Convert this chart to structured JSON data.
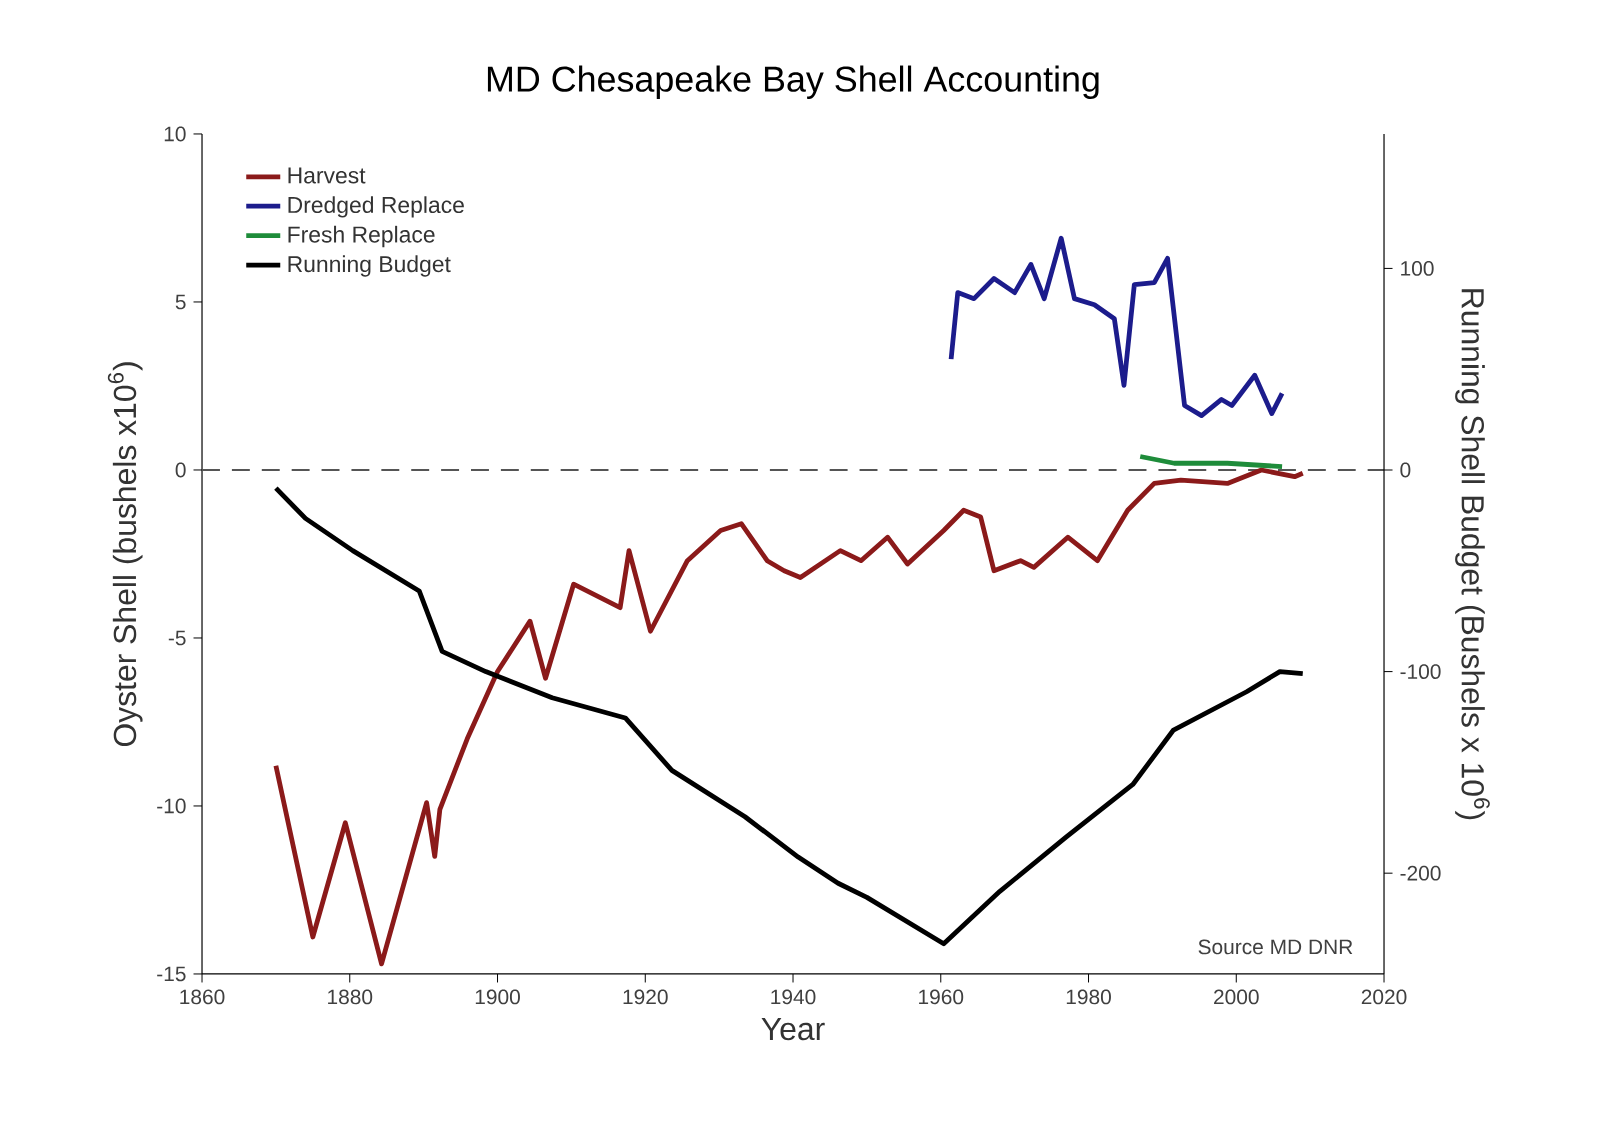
{
  "chart_data": {
    "type": "line",
    "title": "MD Chesapeake Bay Shell Accounting",
    "xlabel": "Year",
    "ylabel": "Oyster Shell (bushels x10$^{6}$)",
    "y2label": "Running Shell Budget (Bushels x 10$^{6}$)",
    "xlim": [
      1860,
      2020
    ],
    "xticks": [
      1860,
      1880,
      1900,
      1920,
      1940,
      1960,
      1980,
      2000,
      2020
    ],
    "ylim": [
      -15,
      10
    ],
    "yticks": [
      -15,
      -10,
      -5,
      0,
      5,
      10
    ],
    "y2lim": [
      -250,
      166.7
    ],
    "y2ticks": [
      -200,
      -100,
      0,
      100
    ],
    "grid": false,
    "legend": "top left",
    "marker": "none",
    "line_style": "solid",
    "ref_lines": [
      {
        "axis": "y",
        "value": 0,
        "color": "#555555",
        "line_style": "dashed"
      }
    ],
    "annotations": [
      "Source MD DNR"
    ],
    "series": [
      {
        "name": "Harvest",
        "color": "#8b1a1a",
        "x": [
          1870,
          1875,
          1879.4,
          1884.3,
          1890.4,
          1891.5,
          1892.2,
          1895.9,
          1900,
          1904.4,
          1906.5,
          1910.3,
          1916.6,
          1917.8,
          1920.7,
          1925.7,
          1930.2,
          1933,
          1936.5,
          1938.8,
          1941,
          1946.4,
          1949.2,
          1952.8,
          1955.5,
          1960.4,
          1963.1,
          1965.4,
          1967.2,
          1970.8,
          1972.6,
          1977.2,
          1981.2,
          1985.3,
          1988.9,
          1992.5,
          1998.8,
          2003.4,
          2007.9,
          2009
        ],
        "values": [
          -8.8,
          -13.9,
          -10.5,
          -14.7,
          -9.9,
          -11.5,
          -10.1,
          -8.0,
          -6.0,
          -4.5,
          -6.2,
          -3.4,
          -4.1,
          -2.4,
          -4.8,
          -2.7,
          -1.8,
          -1.6,
          -2.7,
          -3.0,
          -3.2,
          -2.4,
          -2.7,
          -2.0,
          -2.8,
          -1.8,
          -1.2,
          -1.4,
          -3.0,
          -2.7,
          -2.9,
          -2.0,
          -2.7,
          -1.2,
          -0.4,
          -0.3,
          -0.4,
          0,
          -0.2,
          -0.1
        ]
      },
      {
        "name": "Dredged Replace",
        "color": "#1c1c8c",
        "axis": "y2",
        "x": [
          1961.4,
          1962.3,
          1964.5,
          1967.2,
          1970,
          1972.2,
          1974,
          1976.3,
          1978.1,
          1980.8,
          1983.5,
          1984.8,
          1986.2,
          1988.9,
          1990.7,
          1993,
          1995.3,
          1998,
          1999.4,
          2002.5,
          2004.8,
          2006.2
        ],
        "values": [
          55,
          88,
          85,
          95,
          88,
          102,
          85,
          115,
          85,
          82,
          75,
          42,
          92,
          93,
          105,
          32,
          27,
          35,
          32,
          47,
          28,
          38
        ]
      },
      {
        "name": "Fresh Replace",
        "color": "#1e8c3a",
        "x": [
          1987,
          1991.6,
          1998.8,
          2006.2
        ],
        "values": [
          0.4,
          0.2,
          0.2,
          0.1
        ]
      },
      {
        "name": "Running Budget",
        "color": "#000000",
        "axis": "y2",
        "x": [
          1870,
          1874,
          1880.4,
          1884.9,
          1889.4,
          1892.5,
          1898.4,
          1907.4,
          1917.3,
          1923.6,
          1933.5,
          1940.7,
          1946.1,
          1950,
          1960.4,
          1968,
          1977,
          1986,
          1991.5,
          2001.4,
          2005.9,
          2009
        ],
        "values": [
          -9,
          -24,
          -40,
          -50,
          -60,
          -90,
          -100,
          -113,
          -123,
          -149,
          -172,
          -192,
          -205,
          -212,
          -235,
          -209,
          -182,
          -156,
          -129,
          -110,
          -100,
          -101
        ]
      }
    ]
  }
}
